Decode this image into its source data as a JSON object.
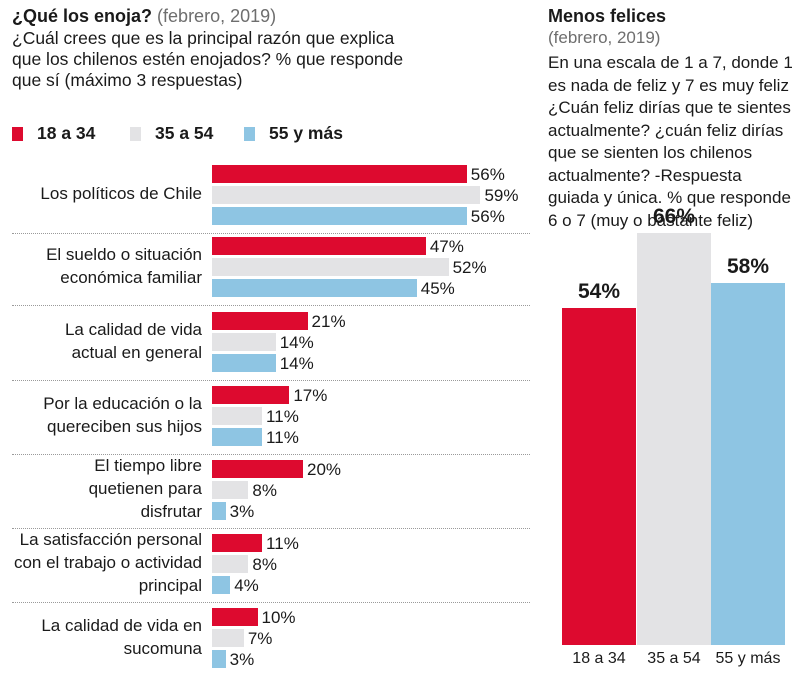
{
  "left": {
    "title_bold": "¿Qué los enoja?",
    "title_date": "(febrero, 2019)",
    "question": "¿Cuál crees que es la principal razón que explica que los chilenos estén enojados? % que responde que sí (máximo 3 respuestas)"
  },
  "right": {
    "title": "Menos felices",
    "date": "(febrero, 2019)",
    "question": "En una escala de 1 a 7, donde 1 es nada de feliz y 7 es muy feliz ¿Cuán feliz dirías que te sientes actualmente? ¿cuán feliz dirías que se sienten los chilenos actualmente? -Respuesta guiada y única. % que responde  6 o 7 (muy o bastante  feliz)"
  },
  "colors": {
    "red": "#dd0a2f",
    "gray": "#e3e3e5",
    "blue": "#8ec5e3"
  },
  "chart_data": [
    {
      "type": "bar",
      "orientation": "horizontal",
      "title": "¿Qué los enoja? (febrero, 2019)",
      "categories": [
        "Los políticos de Chile",
        "El sueldo o situación económica familiar",
        "La calidad de vida actual en general",
        "Por la educación o la quereciben sus hijos",
        "El tiempo libre quetienen para disfrutar",
        "La satisfacción personal con el trabajo o actividad principal",
        "La calidad de vida en sucomuna"
      ],
      "category_lines": [
        [
          "Los políticos de Chile"
        ],
        [
          "El sueldo o situación",
          "económica familiar"
        ],
        [
          "La calidad de vida",
          "actual en general"
        ],
        [
          "Por la educación o la",
          "quereciben sus hijos"
        ],
        [
          "El tiempo libre",
          "quetienen para",
          "disfrutar"
        ],
        [
          "La satisfacción personal",
          "con el trabajo o actividad",
          "principal"
        ],
        [
          "La calidad de vida en",
          "sucomuna"
        ]
      ],
      "series": [
        {
          "name": "18 a 34",
          "color": "#dd0a2f",
          "values": [
            56,
            47,
            21,
            17,
            20,
            11,
            10
          ]
        },
        {
          "name": "35 a 54",
          "color": "#e3e3e5",
          "values": [
            59,
            52,
            14,
            11,
            8,
            8,
            7
          ]
        },
        {
          "name": "55 y más",
          "color": "#8ec5e3",
          "values": [
            56,
            45,
            14,
            11,
            3,
            4,
            3
          ]
        }
      ],
      "value_suffix": "%",
      "xlim": [
        0,
        100
      ]
    },
    {
      "type": "bar",
      "orientation": "vertical",
      "title": "Menos felices (febrero, 2019)",
      "categories": [
        "18 a 34",
        "35 a 54",
        "55 y más"
      ],
      "values": [
        54,
        66,
        58
      ],
      "colors": [
        "#dd0a2f",
        "#e3e3e5",
        "#8ec5e3"
      ],
      "value_suffix": "%",
      "ylim": [
        0,
        100
      ]
    }
  ]
}
